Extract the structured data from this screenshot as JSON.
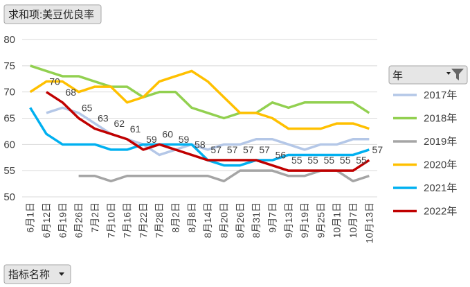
{
  "chart_data": {
    "type": "line",
    "field_button": "求和项:美豆优良率",
    "axis_button": "指标名称",
    "legend_title": "年",
    "categories": [
      "6月1日",
      "6月12日",
      "6月19日",
      "6月26日",
      "7月2日",
      "7月10日",
      "7月16日",
      "7月22日",
      "7月28日",
      "8月2日",
      "8月8日",
      "8月14日",
      "8月20日",
      "8月26日",
      "8月31日",
      "9月7日",
      "9月13日",
      "9月19日",
      "9月25日",
      "10月1日",
      "10月7日",
      "10月13日"
    ],
    "ylim": [
      50,
      80
    ],
    "yticks": [
      50,
      55,
      60,
      65,
      70,
      75,
      80
    ],
    "grid": true,
    "legend": "right",
    "series": [
      {
        "name": "2017年",
        "color": "#b4c7e7",
        "values": [
          null,
          66,
          67,
          66,
          64,
          62,
          61,
          60,
          58,
          59,
          60,
          59,
          60,
          60,
          61,
          61,
          60,
          59,
          60,
          60,
          61,
          61
        ]
      },
      {
        "name": "2018年",
        "color": "#92d050",
        "values": [
          75,
          74,
          73,
          73,
          72,
          71,
          71,
          69,
          70,
          70,
          67,
          66,
          65,
          66,
          66,
          68,
          67,
          68,
          68,
          68,
          68,
          66
        ]
      },
      {
        "name": "2019年",
        "color": "#a5a5a5",
        "values": [
          null,
          null,
          null,
          54,
          54,
          53,
          54,
          54,
          54,
          54,
          54,
          54,
          53,
          55,
          55,
          55,
          54,
          54,
          55,
          55,
          53,
          54
        ]
      },
      {
        "name": "2020年",
        "color": "#ffc000",
        "values": [
          70,
          72,
          72,
          70,
          71,
          71,
          68,
          69,
          72,
          73,
          74,
          72,
          69,
          66,
          66,
          65,
          63,
          63,
          63,
          64,
          64,
          63
        ]
      },
      {
        "name": "2021年",
        "color": "#00b0f0",
        "values": [
          67,
          62,
          60,
          60,
          60,
          59,
          59,
          60,
          60,
          60,
          60,
          57,
          56,
          56,
          57,
          57,
          58,
          58,
          58,
          58,
          58,
          59
        ]
      },
      {
        "name": "2022年",
        "color": "#c00000",
        "labels": true,
        "values": [
          null,
          70,
          68,
          65,
          63,
          62,
          61,
          59,
          60,
          59,
          58,
          57,
          57,
          57,
          57,
          56,
          55,
          55,
          55,
          55,
          55,
          57
        ]
      }
    ]
  }
}
